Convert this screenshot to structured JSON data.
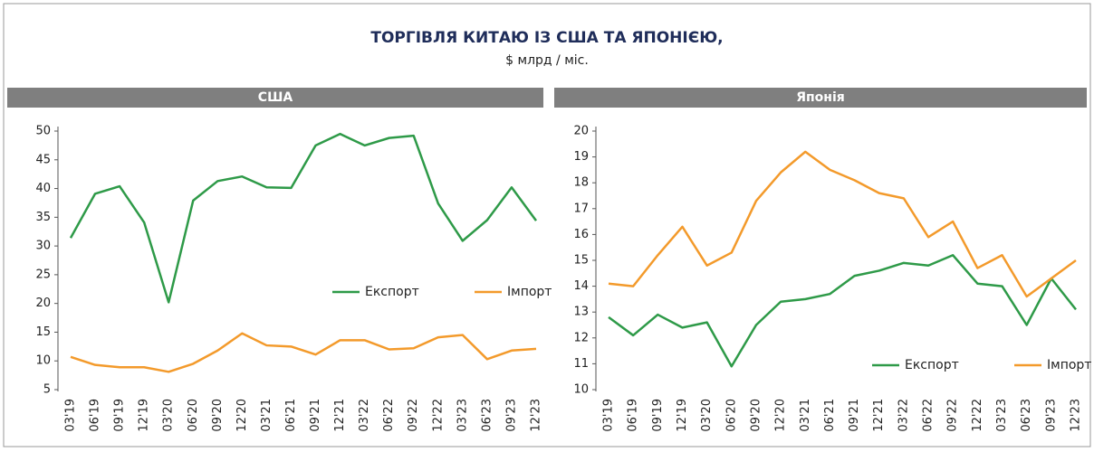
{
  "title": "ТОРГІВЛЯ КИТАЮ ІЗ США ТА ЯПОНІЄЮ,",
  "subtitle": "$ млрд / міс.",
  "chart_data": [
    {
      "type": "line",
      "title": "США",
      "categories": [
        "03'19",
        "06'19",
        "09'19",
        "12'19",
        "03'20",
        "06'20",
        "09'20",
        "12'20",
        "03'21",
        "06'21",
        "09'21",
        "12'21",
        "03'22",
        "06'22",
        "09'22",
        "12'22",
        "03'23",
        "06'23",
        "09'23",
        "12'23"
      ],
      "series": [
        {
          "name": "Експорт",
          "color": "#2e9a48",
          "values": [
            31.4,
            39.1,
            40.4,
            34.1,
            20.2,
            37.9,
            41.3,
            42.1,
            40.2,
            40.1,
            47.5,
            49.5,
            47.5,
            48.8,
            49.2,
            37.4,
            30.9,
            34.5,
            40.2,
            34.4
          ]
        },
        {
          "name": "Імпорт",
          "color": "#f39a2b",
          "values": [
            10.7,
            9.3,
            8.9,
            8.9,
            8.1,
            9.5,
            11.8,
            14.8,
            12.7,
            12.5,
            11.1,
            13.6,
            13.6,
            12.0,
            12.2,
            14.1,
            14.5,
            10.3,
            11.8,
            12.1
          ]
        }
      ],
      "ylim": [
        5,
        50
      ],
      "yticks": [
        5,
        10,
        15,
        20,
        25,
        30,
        35,
        40,
        45,
        50
      ],
      "legend": "center right"
    },
    {
      "type": "line",
      "title": "Японія",
      "categories": [
        "03'19",
        "06'19",
        "09'19",
        "12'19",
        "03'20",
        "06'20",
        "09'20",
        "12'20",
        "03'21",
        "06'21",
        "09'21",
        "12'21",
        "03'22",
        "06'22",
        "09'22",
        "12'22",
        "03'23",
        "06'23",
        "09'23",
        "12'23"
      ],
      "series": [
        {
          "name": "Експорт",
          "color": "#2e9a48",
          "values": [
            12.8,
            12.1,
            12.9,
            12.4,
            12.6,
            10.9,
            12.5,
            13.4,
            13.5,
            13.7,
            14.4,
            14.6,
            14.9,
            14.8,
            15.2,
            14.1,
            14.0,
            12.5,
            14.3,
            13.1
          ]
        },
        {
          "name": "Імпорт",
          "color": "#f39a2b",
          "values": [
            14.1,
            14.0,
            15.2,
            16.3,
            14.8,
            15.3,
            17.3,
            18.4,
            19.2,
            18.5,
            18.1,
            17.6,
            17.4,
            15.9,
            16.5,
            14.7,
            15.2,
            13.6,
            14.3,
            15.0
          ]
        }
      ],
      "ylim": [
        10,
        20
      ],
      "yticks": [
        10,
        11,
        12,
        13,
        14,
        15,
        16,
        17,
        18,
        19,
        20
      ],
      "legend": "lower right"
    }
  ]
}
